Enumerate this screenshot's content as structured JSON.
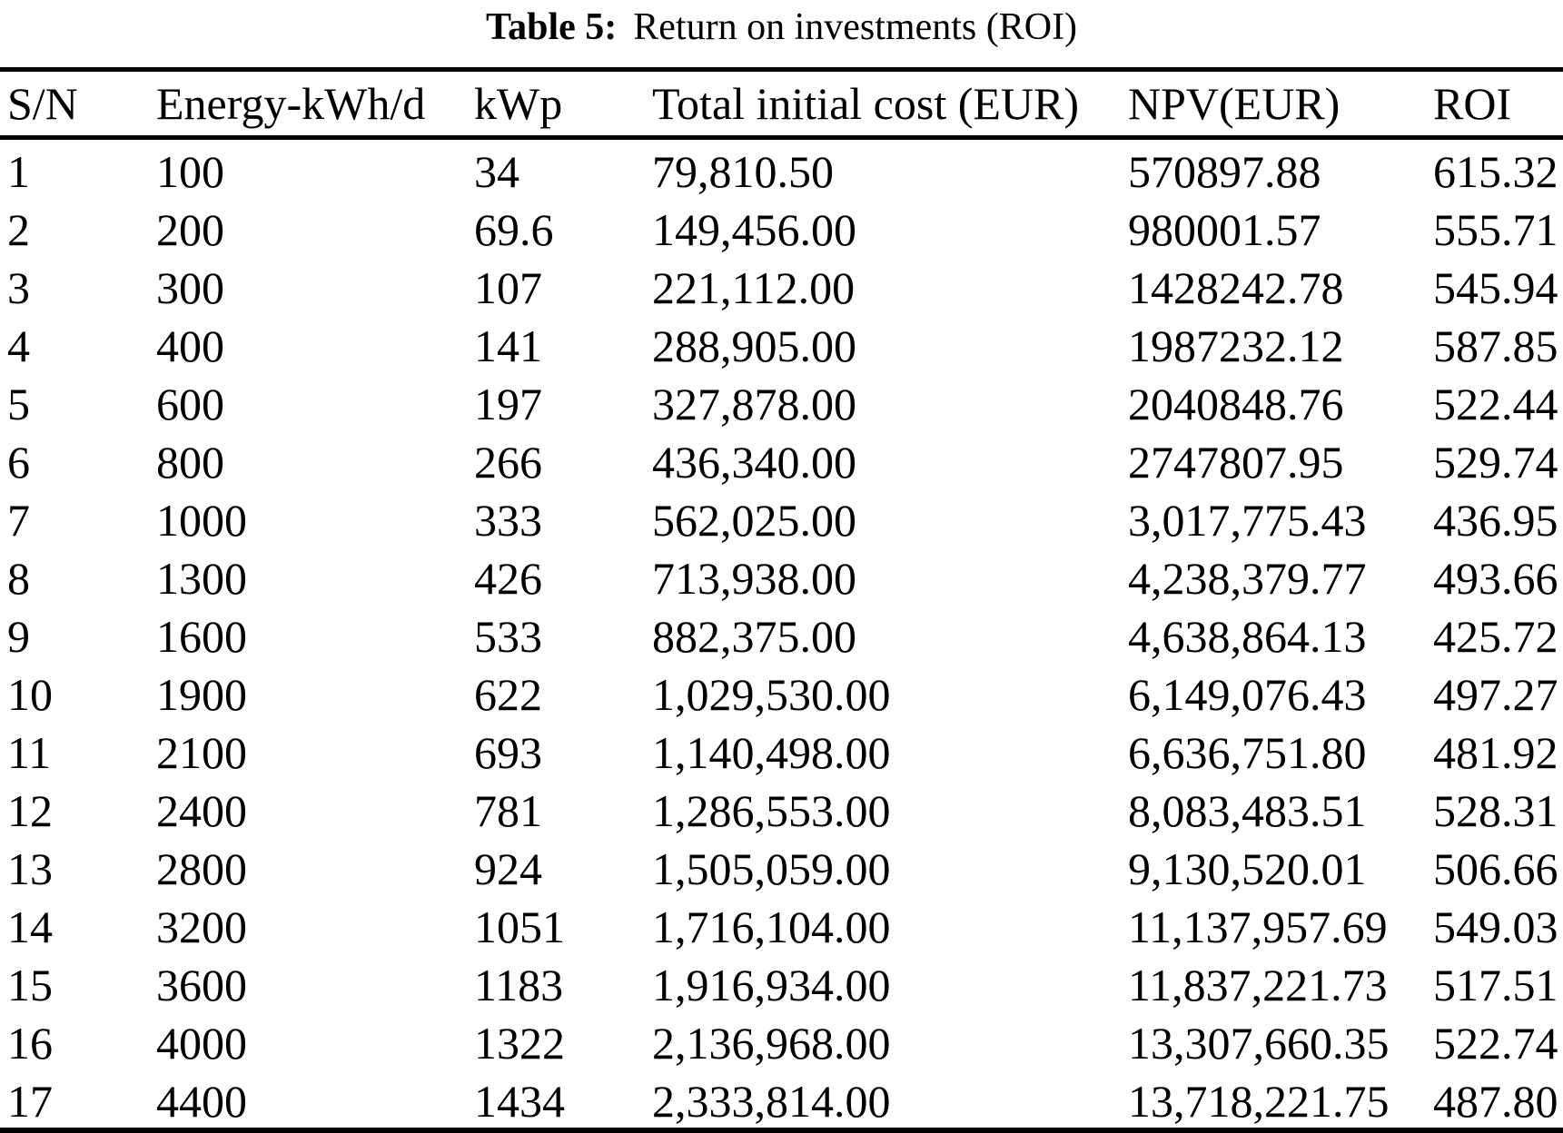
{
  "page": {
    "background": "#ffffff",
    "text_color": "#000000"
  },
  "caption": {
    "label": "Table 5:",
    "title": "Return on investments (ROI)"
  },
  "chart_data": {
    "type": "table",
    "title": "Table 5: Return on investments (ROI)",
    "columns": [
      "S/N",
      "Energy-kWh/d",
      "kWp",
      "Total initial cost (EUR)",
      "NPV(EUR)",
      "ROI"
    ],
    "rows": [
      [
        "1",
        "100",
        "34",
        "79,810.50",
        "570897.88",
        "615.32"
      ],
      [
        "2",
        "200",
        "69.6",
        "149,456.00",
        "980001.57",
        "555.71"
      ],
      [
        "3",
        "300",
        "107",
        "221,112.00",
        "1428242.78",
        "545.94"
      ],
      [
        "4",
        "400",
        "141",
        "288,905.00",
        "1987232.12",
        "587.85"
      ],
      [
        "5",
        "600",
        "197",
        "327,878.00",
        "2040848.76",
        "522.44"
      ],
      [
        "6",
        "800",
        "266",
        "436,340.00",
        "2747807.95",
        "529.74"
      ],
      [
        "7",
        "1000",
        "333",
        "562,025.00",
        "3,017,775.43",
        "436.95"
      ],
      [
        "8",
        "1300",
        "426",
        "713,938.00",
        "4,238,379.77",
        "493.66"
      ],
      [
        "9",
        "1600",
        "533",
        "882,375.00",
        "4,638,864.13",
        "425.72"
      ],
      [
        "10",
        "1900",
        "622",
        "1,029,530.00",
        "6,149,076.43",
        "497.27"
      ],
      [
        "11",
        "2100",
        "693",
        "1,140,498.00",
        "6,636,751.80",
        "481.92"
      ],
      [
        "12",
        "2400",
        "781",
        "1,286,553.00",
        "8,083,483.51",
        "528.31"
      ],
      [
        "13",
        "2800",
        "924",
        "1,505,059.00",
        "9,130,520.01",
        "506.66"
      ],
      [
        "14",
        "3200",
        "1051",
        "1,716,104.00",
        "11,137,957.69",
        "549.03"
      ],
      [
        "15",
        "3600",
        "1183",
        "1,916,934.00",
        "11,837,221.73",
        "517.51"
      ],
      [
        "16",
        "4000",
        "1322",
        "2,136,968.00",
        "13,307,660.35",
        "522.74"
      ],
      [
        "17",
        "4400",
        "1434",
        "2,333,814.00",
        "13,718,221.75",
        "487.80"
      ]
    ]
  }
}
